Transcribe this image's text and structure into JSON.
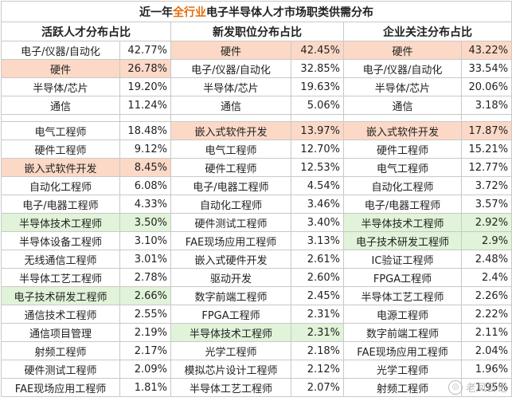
{
  "title": {
    "pre": "近一年",
    "accent": "全行业",
    "post": "电子半导体人才市场职类供需分布"
  },
  "colors": {
    "orange_highlight": "#fbd9c6",
    "green_highlight": "#e1f3d9",
    "accent": "#e46c0a"
  },
  "headers": [
    "活跃人才分布占比",
    "新发职位分布占比",
    "企业关注分布占比"
  ],
  "section1": [
    [
      {
        "n": "电子/仪器/自动化",
        "v": "42.77%"
      },
      {
        "n": "硬件",
        "v": "42.45%",
        "h": "orange"
      },
      {
        "n": "硬件",
        "v": "43.22%",
        "h": "orange"
      }
    ],
    [
      {
        "n": "硬件",
        "v": "26.78%",
        "h": "orange"
      },
      {
        "n": "电子/仪器/自动化",
        "v": "32.85%"
      },
      {
        "n": "电子/仪器/自动化",
        "v": "33.54%"
      }
    ],
    [
      {
        "n": "半导体/芯片",
        "v": "19.20%"
      },
      {
        "n": "半导体/芯片",
        "v": "19.63%"
      },
      {
        "n": "半导体/芯片",
        "v": "20.06%"
      }
    ],
    [
      {
        "n": "通信",
        "v": "11.24%"
      },
      {
        "n": "通信",
        "v": "5.06%"
      },
      {
        "n": "通信",
        "v": "3.18%"
      }
    ]
  ],
  "section2": [
    [
      {
        "n": "电气工程师",
        "v": "18.48%"
      },
      {
        "n": "嵌入式软件开发",
        "v": "13.97%",
        "h": "orange"
      },
      {
        "n": "嵌入式软件开发",
        "v": "17.87%",
        "h": "orange"
      }
    ],
    [
      {
        "n": "硬件工程师",
        "v": "9.12%"
      },
      {
        "n": "电气工程师",
        "v": "12.70%"
      },
      {
        "n": "硬件工程师",
        "v": "15.21%"
      }
    ],
    [
      {
        "n": "嵌入式软件开发",
        "v": "8.45%",
        "h": "orange"
      },
      {
        "n": "硬件工程师",
        "v": "12.53%"
      },
      {
        "n": "电气工程师",
        "v": "12.77%"
      }
    ],
    [
      {
        "n": "自动化工程师",
        "v": "6.08%"
      },
      {
        "n": "电子/电器工程师",
        "v": "4.54%"
      },
      {
        "n": "自动化工程师",
        "v": "3.72%"
      }
    ],
    [
      {
        "n": "电子/电器工程师",
        "v": "4.33%"
      },
      {
        "n": "自动化工程师",
        "v": "3.46%"
      },
      {
        "n": "电子/电器工程师",
        "v": "3.57%"
      }
    ],
    [
      {
        "n": "半导体技术工程师",
        "v": "3.50%",
        "h": "green"
      },
      {
        "n": "硬件测试工程师",
        "v": "3.40%"
      },
      {
        "n": "半导体技术工程师",
        "v": "2.92%",
        "h": "green"
      }
    ],
    [
      {
        "n": "半导体设备工程师",
        "v": "3.10%"
      },
      {
        "n": "FAE现场应用工程师",
        "v": "3.13%"
      },
      {
        "n": "电子技术研发工程师",
        "v": "2.9%",
        "h": "green"
      }
    ],
    [
      {
        "n": "无线通信工程师",
        "v": "3.01%"
      },
      {
        "n": "嵌入式硬件开发",
        "v": "2.61%"
      },
      {
        "n": "IC验证工程师",
        "v": "2.48%"
      }
    ],
    [
      {
        "n": "半导体工艺工程师",
        "v": "2.78%"
      },
      {
        "n": "驱动开发",
        "v": "2.60%"
      },
      {
        "n": "FPGA工程师",
        "v": "2.4%"
      }
    ],
    [
      {
        "n": "电子技术研发工程师",
        "v": "2.66%",
        "h": "green"
      },
      {
        "n": "数字前端工程师",
        "v": "2.45%"
      },
      {
        "n": "半导体工艺工程师",
        "v": "2.26%"
      }
    ],
    [
      {
        "n": "通信技术工程师",
        "v": "2.55%"
      },
      {
        "n": "FPGA工程师",
        "v": "2.31%"
      },
      {
        "n": "电源工程师",
        "v": "2.22%"
      }
    ],
    [
      {
        "n": "通信项目管理",
        "v": "2.19%"
      },
      {
        "n": "半导体技术工程师",
        "v": "2.31%",
        "h": "green"
      },
      {
        "n": "数字前端工程师",
        "v": "2.11%"
      }
    ],
    [
      {
        "n": "射频工程师",
        "v": "2.17%"
      },
      {
        "n": "光学工程师",
        "v": "2.18%"
      },
      {
        "n": "FAE现场应用工程师",
        "v": "2.04%"
      }
    ],
    [
      {
        "n": "硬件测试工程师",
        "v": "2.09%"
      },
      {
        "n": "模拟芯片设计工程师",
        "v": "2.12%"
      },
      {
        "n": "光学工程师",
        "v": "1.96%"
      }
    ],
    [
      {
        "n": "FAE现场应用工程师",
        "v": "1.81%"
      },
      {
        "n": "半导体工艺工程师",
        "v": "2.07%"
      },
      {
        "n": "射频工程师",
        "v": "1.95%"
      }
    ]
  ],
  "watermark": "老凤日记"
}
